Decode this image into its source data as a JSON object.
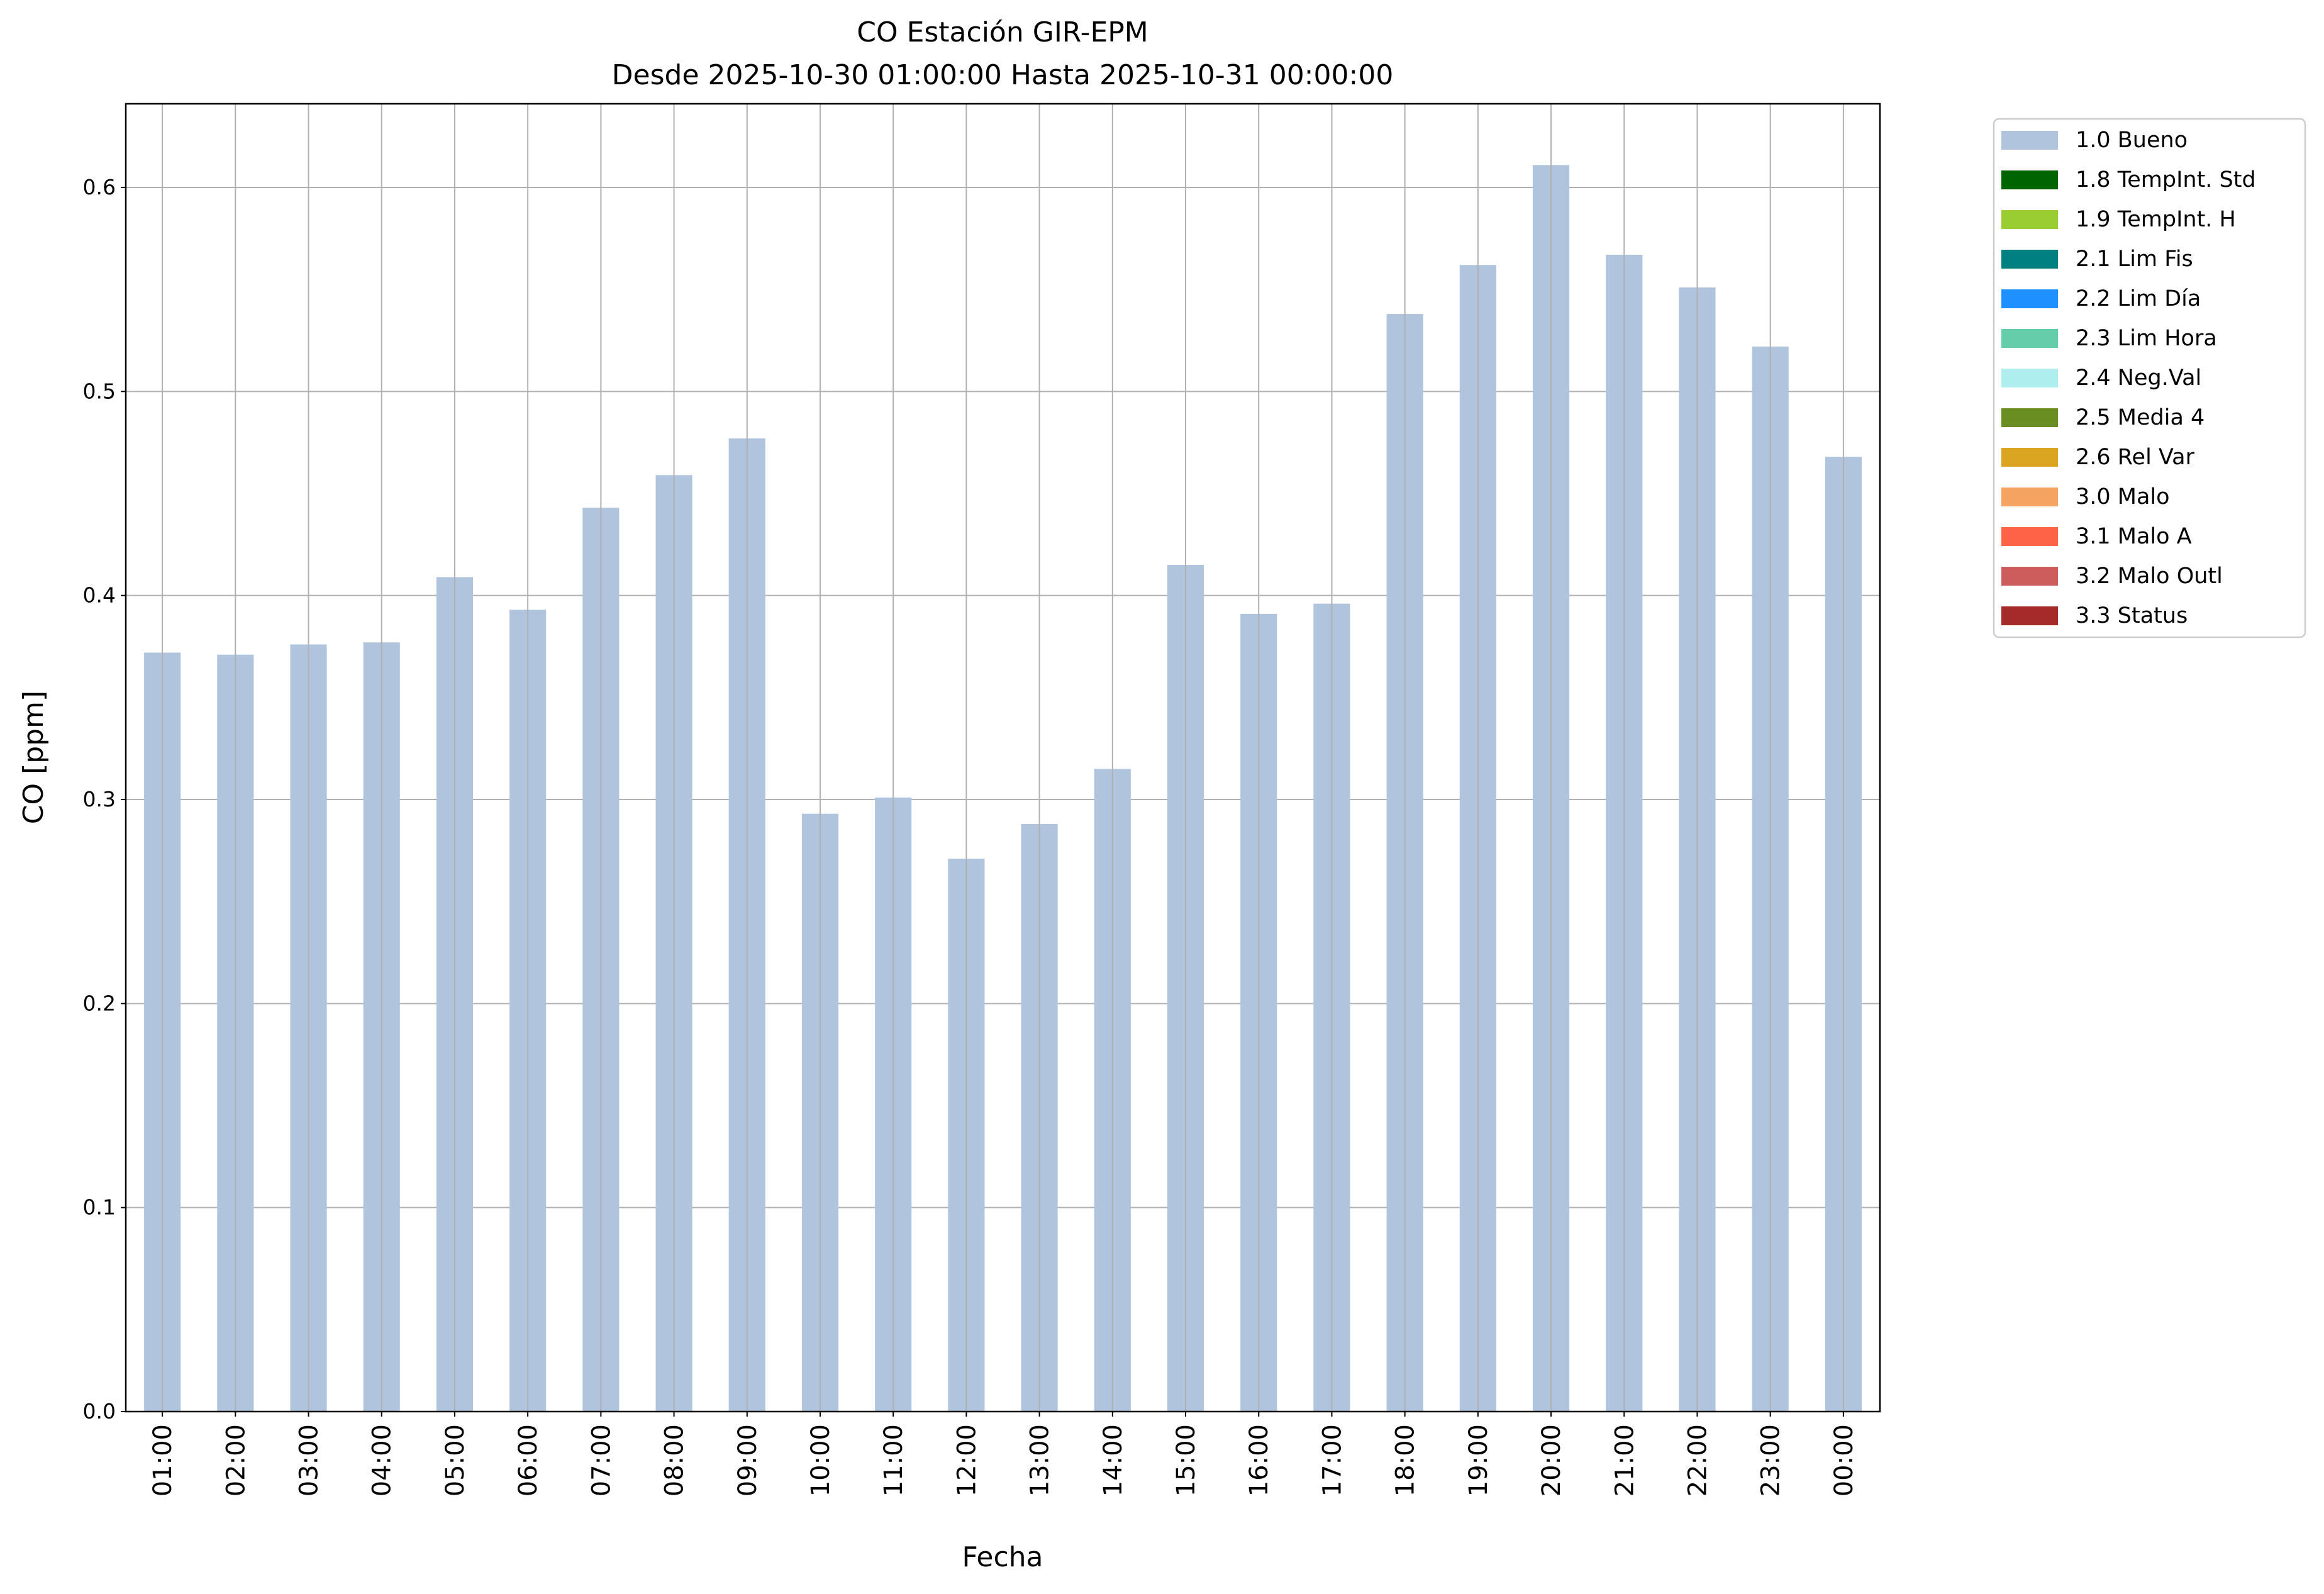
{
  "chart_data": {
    "type": "bar",
    "title": "CO Estación GIR-EPM",
    "subtitle": "Desde 2025-10-30 01:00:00 Hasta 2025-10-31 00:00:00",
    "xlabel": "Fecha",
    "ylabel": "CO [ppm]",
    "ylim": [
      0,
      0.641
    ],
    "yticks": [
      "0.0",
      "0.1",
      "0.2",
      "0.3",
      "0.4",
      "0.5",
      "0.6"
    ],
    "grid": true,
    "legend_placement": "outside-top-right",
    "categories": [
      "01:00",
      "02:00",
      "03:00",
      "04:00",
      "05:00",
      "06:00",
      "07:00",
      "08:00",
      "09:00",
      "10:00",
      "11:00",
      "12:00",
      "13:00",
      "14:00",
      "15:00",
      "16:00",
      "17:00",
      "18:00",
      "19:00",
      "20:00",
      "21:00",
      "22:00",
      "23:00",
      "00:00"
    ],
    "series": [
      {
        "name": "1.0 Bueno",
        "color": "#b0c4de",
        "values": [
          0.372,
          0.371,
          0.376,
          0.377,
          0.409,
          0.393,
          0.443,
          0.459,
          0.477,
          0.293,
          0.301,
          0.271,
          0.288,
          0.315,
          0.415,
          0.391,
          0.396,
          0.538,
          0.562,
          0.611,
          0.567,
          0.551,
          0.522,
          0.468
        ]
      }
    ],
    "legend": [
      {
        "label": "1.0 Bueno",
        "color": "#b0c4de"
      },
      {
        "label": "1.8 TempInt. Std",
        "color": "#006400"
      },
      {
        "label": "1.9 TempInt. H",
        "color": "#9acd32"
      },
      {
        "label": "2.1 Lim Fis",
        "color": "#008080"
      },
      {
        "label": "2.2 Lim Día",
        "color": "#1e90ff"
      },
      {
        "label": "2.3 Lim Hora",
        "color": "#66cdaa"
      },
      {
        "label": "2.4 Neg.Val",
        "color": "#afeeee"
      },
      {
        "label": "2.5 Media 4",
        "color": "#6b8e23"
      },
      {
        "label": "2.6 Rel Var",
        "color": "#daa520"
      },
      {
        "label": "3.0 Malo",
        "color": "#f4a460"
      },
      {
        "label": "3.1 Malo A",
        "color": "#ff6347"
      },
      {
        "label": "3.2 Malo Outl",
        "color": "#cd5c5c"
      },
      {
        "label": "3.3 Status",
        "color": "#a52a2a"
      }
    ]
  }
}
